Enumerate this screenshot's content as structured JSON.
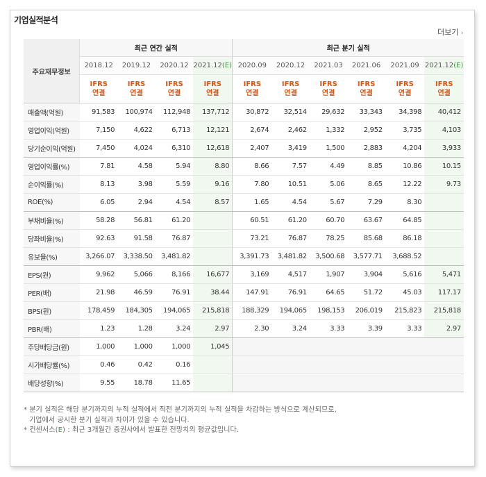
{
  "section_title": "기업실적분석",
  "more_link": "더보기",
  "table": {
    "corner_label": "주요재무정보",
    "annual_group_label": "최근 연간 실적",
    "quarter_group_label": "최근 분기 실적",
    "annual_periods": [
      "2018.12",
      "2019.12",
      "2020.12",
      "2021.12"
    ],
    "annual_estimate_suffix": "(E)",
    "quarter_periods": [
      "2020.09",
      "2020.12",
      "2021.03",
      "2021.06",
      "2021.09",
      "2021.12"
    ],
    "quarter_estimate_suffix": "(E)",
    "ifrs_line1": "IFRS",
    "ifrs_line2": "연결",
    "rows": [
      {
        "label": "매출액(억원)",
        "annual": [
          "91,583",
          "100,974",
          "112,948",
          "137,712"
        ],
        "quarter": [
          "30,872",
          "32,514",
          "29,632",
          "33,343",
          "34,398",
          "40,412"
        ]
      },
      {
        "label": "영업이익(억원)",
        "annual": [
          "7,150",
          "4,622",
          "6,713",
          "12,121"
        ],
        "quarter": [
          "2,674",
          "2,462",
          "1,332",
          "2,952",
          "3,735",
          "4,103"
        ]
      },
      {
        "label": "당기순이익(억원)",
        "annual": [
          "7,450",
          "4,024",
          "6,310",
          "12,618"
        ],
        "quarter": [
          "2,407",
          "3,419",
          "1,500",
          "2,883",
          "4,204",
          "3,933"
        ]
      },
      {
        "label": "영업이익률(%)",
        "annual": [
          "7.81",
          "4.58",
          "5.94",
          "8.80"
        ],
        "quarter": [
          "8.66",
          "7.57",
          "4.49",
          "8.85",
          "10.86",
          "10.15"
        ]
      },
      {
        "label": "순이익률(%)",
        "annual": [
          "8.13",
          "3.98",
          "5.59",
          "9.16"
        ],
        "quarter": [
          "7.80",
          "10.51",
          "5.06",
          "8.65",
          "12.22",
          "9.73"
        ]
      },
      {
        "label": "ROE(%)",
        "annual": [
          "6.05",
          "2.94",
          "4.54",
          "8.57"
        ],
        "quarter": [
          "1.65",
          "4.54",
          "5.67",
          "7.29",
          "8.30",
          ""
        ]
      },
      {
        "label": "부채비율(%)",
        "annual": [
          "58.28",
          "56.81",
          "61.20",
          ""
        ],
        "quarter": [
          "60.51",
          "61.20",
          "60.70",
          "63.67",
          "64.85",
          ""
        ]
      },
      {
        "label": "당좌비율(%)",
        "annual": [
          "92.63",
          "91.58",
          "76.87",
          ""
        ],
        "quarter": [
          "73.21",
          "76.87",
          "78.25",
          "85.68",
          "86.18",
          ""
        ]
      },
      {
        "label": "유보율(%)",
        "annual": [
          "3,266.07",
          "3,338.50",
          "3,481.82",
          ""
        ],
        "quarter": [
          "3,391.73",
          "3,481.82",
          "3,500.68",
          "3,577.71",
          "3,688.52",
          ""
        ]
      },
      {
        "label": "EPS(원)",
        "annual": [
          "9,962",
          "5,066",
          "8,166",
          "16,677"
        ],
        "quarter": [
          "3,169",
          "4,517",
          "1,907",
          "3,904",
          "5,616",
          "5,471"
        ]
      },
      {
        "label": "PER(배)",
        "annual": [
          "21.98",
          "46.59",
          "76.91",
          "38.44"
        ],
        "quarter": [
          "147.91",
          "76.91",
          "64.65",
          "51.72",
          "45.03",
          "117.17"
        ]
      },
      {
        "label": "BPS(원)",
        "annual": [
          "178,459",
          "184,305",
          "194,065",
          "215,818"
        ],
        "quarter": [
          "188,329",
          "194,065",
          "198,153",
          "206,019",
          "215,823",
          "215,818"
        ]
      },
      {
        "label": "PBR(배)",
        "annual": [
          "1.23",
          "1.28",
          "3.24",
          "2.97"
        ],
        "quarter": [
          "2.30",
          "3.24",
          "3.33",
          "3.39",
          "3.33",
          "2.97"
        ]
      },
      {
        "label": "주당배당금(원)",
        "annual": [
          "1,000",
          "1,000",
          "1,000",
          "1,045"
        ],
        "quarter": [
          "",
          "",
          "",
          "",
          "",
          ""
        ]
      },
      {
        "label": "시가배당률(%)",
        "annual": [
          "0.46",
          "0.42",
          "0.16",
          ""
        ],
        "quarter": [
          "",
          "",
          "",
          "",
          "",
          ""
        ]
      },
      {
        "label": "배당성향(%)",
        "annual": [
          "9.55",
          "18.78",
          "11.65",
          ""
        ],
        "quarter": [
          "",
          "",
          "",
          "",
          "",
          ""
        ]
      }
    ]
  },
  "notes": {
    "line1": "* 분기 실적은 해당 분기까지의 누적 실적에서 직전 분기까지의 누적 실적을 차감하는 방식으로 계산되므로,",
    "line2": "기업에서 공시한 분기 실적과 차이가 있을 수 있습니다.",
    "line3_prefix": "* 컨센서스(",
    "line3_mark": "E",
    "line3_suffix": ") : 최근 3개월간 증권사에서 발표한 전망치의 평균값입니다."
  },
  "colors": {
    "ifrs": "#e2520c",
    "estimate_bg": "#f1f8ef",
    "estimate_mark": "#3a9a3a"
  }
}
